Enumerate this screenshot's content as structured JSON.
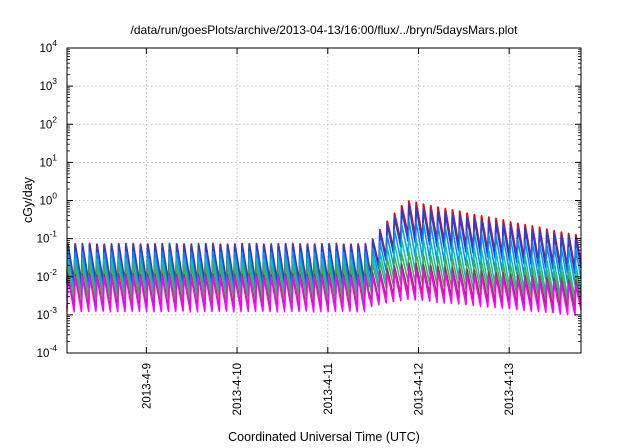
{
  "chart_data": {
    "type": "line",
    "title": "/data/run/goesPlots/archive/2013-04-13/16:00/flux/../bryn/5daysMars.plot",
    "xlabel": "Coordinated Universal Time (UTC)",
    "ylabel": "cGy/day",
    "y_scale": "log",
    "ylim_exponent": [
      -4,
      4
    ],
    "y_ticks": [
      {
        "base": "10",
        "exp": "-4",
        "power": -4
      },
      {
        "base": "10",
        "exp": "-3",
        "power": -3
      },
      {
        "base": "10",
        "exp": "-2",
        "power": -2
      },
      {
        "base": "10",
        "exp": "-1",
        "power": -1
      },
      {
        "base": "10",
        "exp": "0",
        "power": 0
      },
      {
        "base": "10",
        "exp": "1",
        "power": 1
      },
      {
        "base": "10",
        "exp": "2",
        "power": 2
      },
      {
        "base": "10",
        "exp": "3",
        "power": 3
      },
      {
        "base": "10",
        "exp": "4",
        "power": 4
      }
    ],
    "xlim": [
      "2013-04-08T03:00",
      "2013-04-13T19:00"
    ],
    "x_ticks": [
      {
        "label": "2013-4-9",
        "date": "2013-04-09T00:00"
      },
      {
        "label": "2013-4-10",
        "date": "2013-04-10T00:00"
      },
      {
        "label": "2013-4-11",
        "date": "2013-04-11T00:00"
      },
      {
        "label": "2013-4-12",
        "date": "2013-04-12T00:00"
      },
      {
        "label": "2013-4-13",
        "date": "2013-04-13T00:00"
      }
    ],
    "grid": true,
    "event_onset": "2013-04-11T11:00",
    "cycle_hours": 1.92,
    "series": [
      {
        "color": "#ff0000",
        "base_min": 0.007,
        "base_max": 0.075,
        "event_peak": 1.6,
        "event_end": 0.12
      },
      {
        "color": "#2040e0",
        "base_min": 0.006,
        "base_max": 0.07,
        "event_peak": 1.2,
        "event_end": 0.1
      },
      {
        "color": "#0090ff",
        "base_min": 0.004,
        "base_max": 0.045,
        "event_peak": 0.45,
        "event_end": 0.05
      },
      {
        "color": "#00c0c0",
        "base_min": 0.003,
        "base_max": 0.03,
        "event_peak": 0.16,
        "event_end": 0.02
      },
      {
        "color": "#40b040",
        "base_min": 0.0025,
        "base_max": 0.02,
        "event_peak": 0.06,
        "event_end": 0.012
      },
      {
        "color": "#a03060",
        "base_min": 0.0015,
        "base_max": 0.012,
        "event_peak": 0.03,
        "event_end": 0.008
      },
      {
        "color": "#ff00ff",
        "base_min": 0.0012,
        "base_max": 0.01,
        "event_peak": 0.02,
        "event_end": 0.006
      }
    ]
  }
}
